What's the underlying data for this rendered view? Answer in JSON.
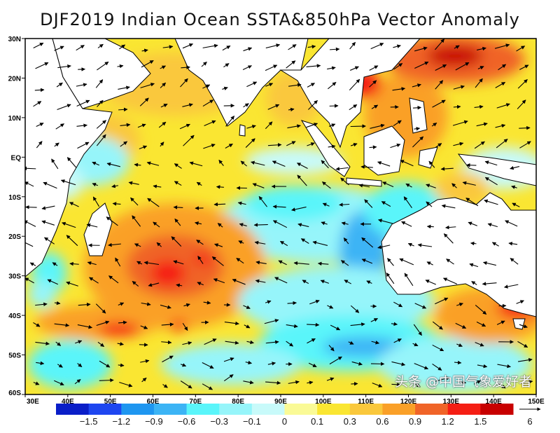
{
  "title": "DJF2019 Indian Ocean SSTA&850hPa Vector Anomaly",
  "map": {
    "region": "Indian Ocean",
    "lon_range": [
      30,
      150
    ],
    "lat_range": [
      -60,
      30
    ],
    "lat_labels": [
      "30N",
      "20N",
      "10N",
      "EQ",
      "10S",
      "20S",
      "30S",
      "40S",
      "50S",
      "60S"
    ],
    "lon_labels": [
      "30E",
      "40E",
      "50E",
      "60E",
      "70E",
      "80E",
      "90E",
      "100E",
      "110E",
      "120E",
      "130E",
      "140E",
      "150E"
    ],
    "land_color": "#ffffff",
    "vector_color": "#000000"
  },
  "colorbar": {
    "labels": [
      "−1.5",
      "−1.2",
      "−0.9",
      "−0.6",
      "−0.3",
      "−0.1",
      "0",
      "0.1",
      "0.3",
      "0.6",
      "0.9",
      "1.2",
      "1.5"
    ],
    "colors": [
      "#0a1ec8",
      "#1e46f0",
      "#1e96f0",
      "#3cb4f5",
      "#5af5fa",
      "#96f5fa",
      "#c8fafa",
      "#fafa96",
      "#fae632",
      "#fac83c",
      "#faa028",
      "#f06428",
      "#f51e14",
      "#c80000"
    ]
  },
  "reference_vector": {
    "value": "6"
  },
  "watermark": "头条 @中国气象爱好者"
}
